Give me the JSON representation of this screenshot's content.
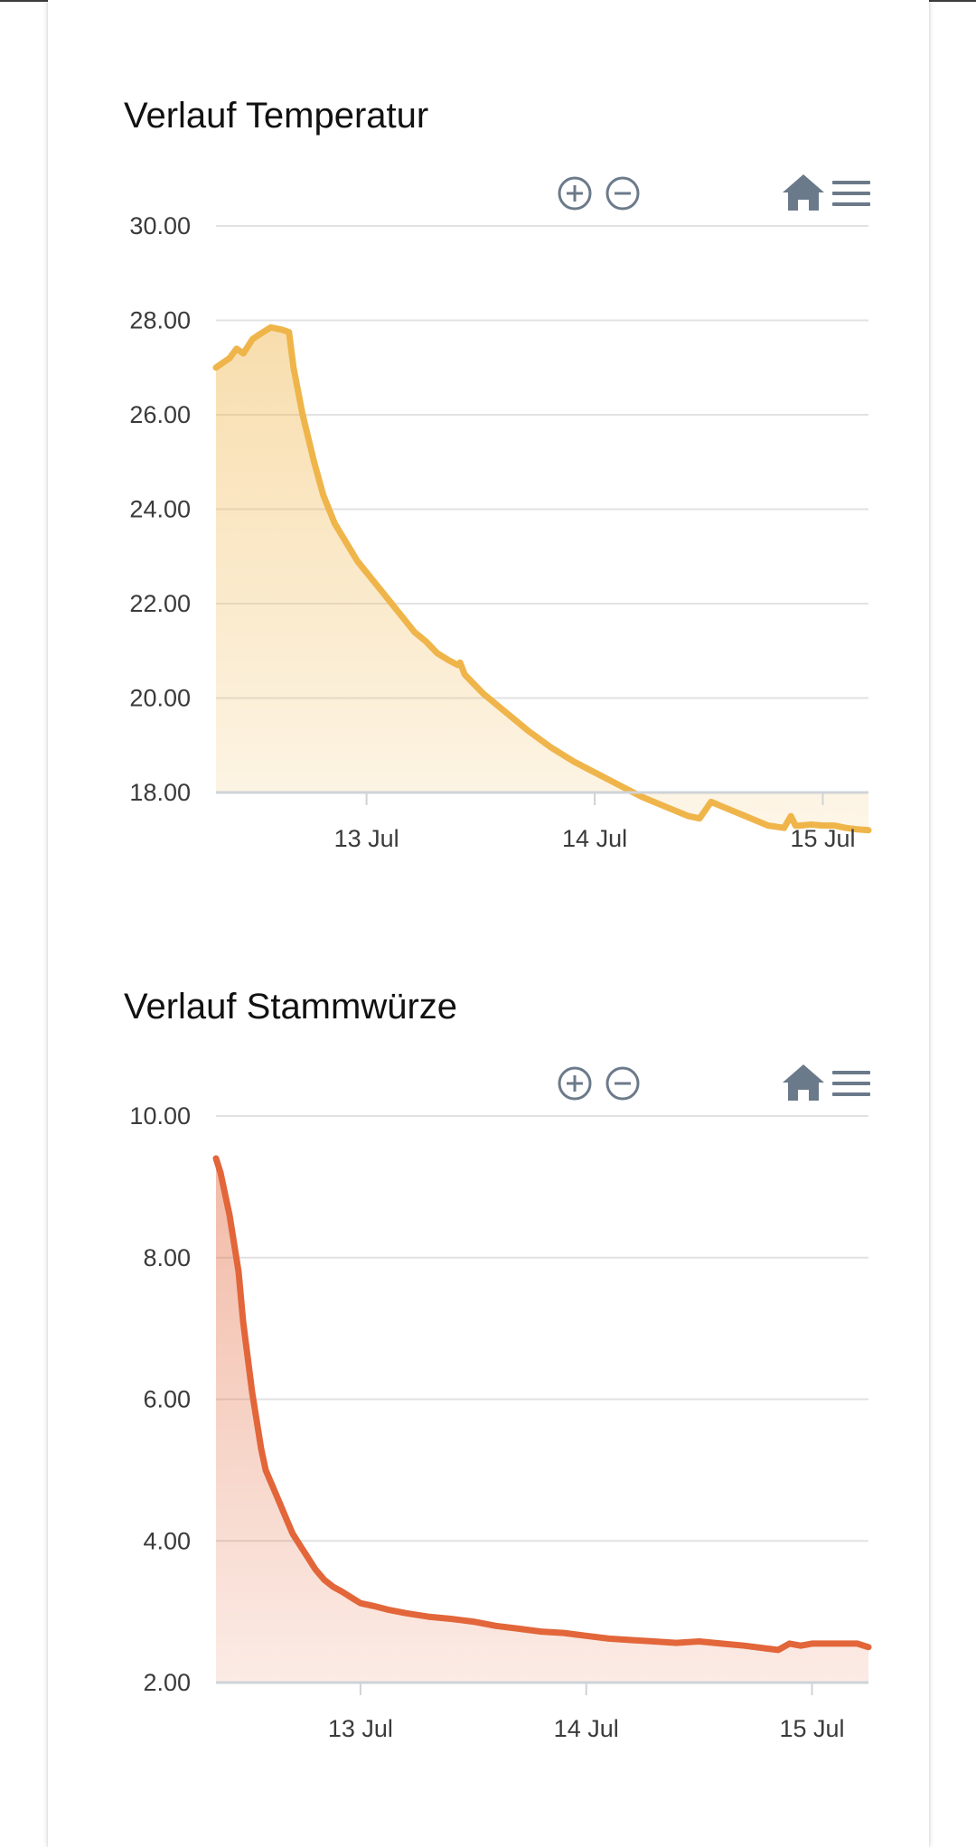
{
  "charts": [
    {
      "title": "Verlauf Temperatur",
      "toolbar": [
        "zoom-in",
        "zoom-out",
        "reset",
        "menu"
      ],
      "chart_data": {
        "type": "area",
        "title": "Verlauf Temperatur",
        "xlabel": "",
        "ylabel": "",
        "x_unit": "days (12 Jul 00:00 = 0)",
        "xlim": [
          0.34,
          3.2
        ],
        "ylim": [
          18,
          30
        ],
        "y_ticks": [
          "30.00",
          "28.00",
          "26.00",
          "24.00",
          "22.00",
          "20.00",
          "18.00"
        ],
        "x_ticks": [
          {
            "x": 1,
            "label": "13 Jul"
          },
          {
            "x": 2,
            "label": "14 Jul"
          },
          {
            "x": 3,
            "label": "15 Jul"
          }
        ],
        "grid": true,
        "color": "#efb54a",
        "series": [
          {
            "x": [
              0.34,
              0.4,
              0.43,
              0.46,
              0.5,
              0.53,
              0.58,
              0.63,
              0.66,
              0.68,
              0.72,
              0.77,
              0.81,
              0.86,
              0.91,
              0.96,
              1.01,
              1.06,
              1.11,
              1.16,
              1.21,
              1.26,
              1.31,
              1.36,
              1.4,
              1.41,
              1.43,
              1.46,
              1.51,
              1.61,
              1.71,
              1.81,
              1.91,
              2.01,
              2.11,
              2.21,
              2.31,
              2.41,
              2.46,
              2.51,
              2.56,
              2.66,
              2.76,
              2.83,
              2.86,
              2.88,
              2.9,
              2.95,
              3.0,
              3.05,
              3.1,
              3.15,
              3.2
            ],
            "y": [
              27.0,
              27.2,
              27.4,
              27.3,
              27.6,
              27.7,
              27.85,
              27.8,
              27.75,
              27.0,
              26.0,
              25.0,
              24.3,
              23.7,
              23.3,
              22.9,
              22.6,
              22.3,
              22.0,
              21.7,
              21.4,
              21.2,
              20.95,
              20.8,
              20.7,
              20.75,
              20.5,
              20.35,
              20.1,
              19.7,
              19.3,
              18.95,
              18.65,
              18.4,
              18.15,
              17.9,
              17.7,
              17.5,
              17.45,
              17.8,
              17.7,
              17.5,
              17.3,
              17.25,
              17.5,
              17.3,
              17.3,
              17.32,
              17.3,
              17.3,
              17.25,
              17.22,
              17.2
            ]
          }
        ]
      }
    },
    {
      "title": "Verlauf Stammwürze",
      "toolbar": [
        "zoom-in",
        "zoom-out",
        "reset",
        "menu"
      ],
      "chart_data": {
        "type": "area",
        "title": "Verlauf Stammwürze",
        "xlabel": "",
        "ylabel": "",
        "x_unit": "days (12 Jul 00:00 = 0)",
        "xlim": [
          0.36,
          3.25
        ],
        "ylim": [
          2,
          10
        ],
        "y_ticks": [
          "10.00",
          "8.00",
          "6.00",
          "4.00",
          "2.00"
        ],
        "x_ticks": [
          {
            "x": 1,
            "label": "13 Jul"
          },
          {
            "x": 2,
            "label": "14 Jul"
          },
          {
            "x": 3,
            "label": "15 Jul"
          }
        ],
        "grid": true,
        "color": "#e2663a",
        "series": [
          {
            "x": [
              0.36,
              0.38,
              0.4,
              0.42,
              0.44,
              0.46,
              0.48,
              0.5,
              0.52,
              0.54,
              0.56,
              0.58,
              0.6,
              0.62,
              0.64,
              0.66,
              0.68,
              0.7,
              0.72,
              0.74,
              0.76,
              0.78,
              0.8,
              0.84,
              0.88,
              0.92,
              0.96,
              1.0,
              1.06,
              1.12,
              1.2,
              1.3,
              1.4,
              1.5,
              1.6,
              1.7,
              1.8,
              1.9,
              2.0,
              2.1,
              2.2,
              2.3,
              2.4,
              2.5,
              2.6,
              2.7,
              2.8,
              2.85,
              2.9,
              2.95,
              3.0,
              3.1,
              3.2,
              3.25
            ],
            "y": [
              9.4,
              9.2,
              8.9,
              8.6,
              8.2,
              7.8,
              7.1,
              6.6,
              6.1,
              5.7,
              5.3,
              5.0,
              4.85,
              4.7,
              4.55,
              4.4,
              4.25,
              4.1,
              4.0,
              3.9,
              3.8,
              3.7,
              3.6,
              3.45,
              3.35,
              3.28,
              3.2,
              3.12,
              3.08,
              3.03,
              2.98,
              2.93,
              2.9,
              2.86,
              2.8,
              2.76,
              2.72,
              2.7,
              2.66,
              2.62,
              2.6,
              2.58,
              2.56,
              2.58,
              2.55,
              2.52,
              2.48,
              2.46,
              2.55,
              2.52,
              2.55,
              2.55,
              2.55,
              2.5
            ]
          }
        ]
      }
    }
  ]
}
